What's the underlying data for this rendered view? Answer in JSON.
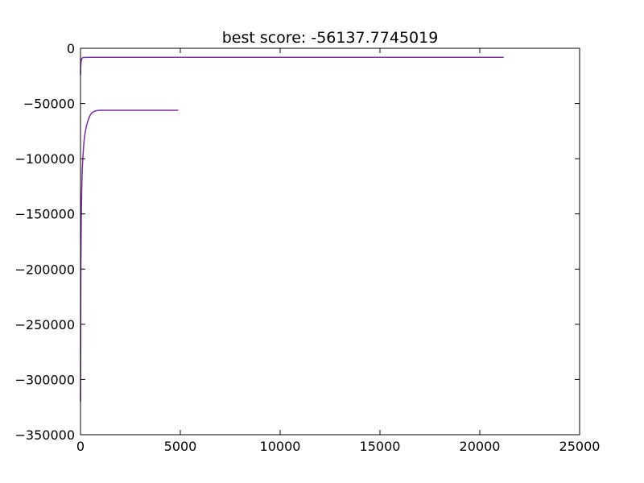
{
  "chart_data": {
    "type": "line",
    "title": "best score: -56137.7745019",
    "xlabel": "",
    "ylabel": "",
    "xlim": [
      0,
      25000
    ],
    "ylim": [
      -350000,
      0
    ],
    "grid": false,
    "x_ticks": [
      0,
      5000,
      10000,
      15000,
      20000,
      25000
    ],
    "y_ticks": [
      0,
      -50000,
      -100000,
      -150000,
      -200000,
      -250000,
      -300000,
      -350000
    ],
    "series": [
      {
        "color": "#7b2aa0",
        "x": [
          0,
          10,
          30,
          60,
          100,
          200,
          500,
          1000,
          5000,
          10000,
          15000,
          20000,
          21200
        ],
        "y": [
          -24000,
          -17000,
          -12000,
          -9500,
          -8500,
          -8300,
          -8200,
          -8200,
          -8200,
          -8200,
          -8200,
          -8200,
          -8200
        ]
      },
      {
        "color": "#7b2aa0",
        "x": [
          0,
          10,
          20,
          40,
          60,
          80,
          100,
          150,
          200,
          300,
          400,
          500,
          600,
          700,
          800,
          900,
          1000,
          2000,
          3000,
          4000,
          4900
        ],
        "y": [
          -320000,
          -250000,
          -190000,
          -150000,
          -130000,
          -115000,
          -105000,
          -90000,
          -80000,
          -70000,
          -64000,
          -60000,
          -58000,
          -57000,
          -56500,
          -56200,
          -56138,
          -56138,
          -56138,
          -56138,
          -56138
        ]
      }
    ]
  }
}
